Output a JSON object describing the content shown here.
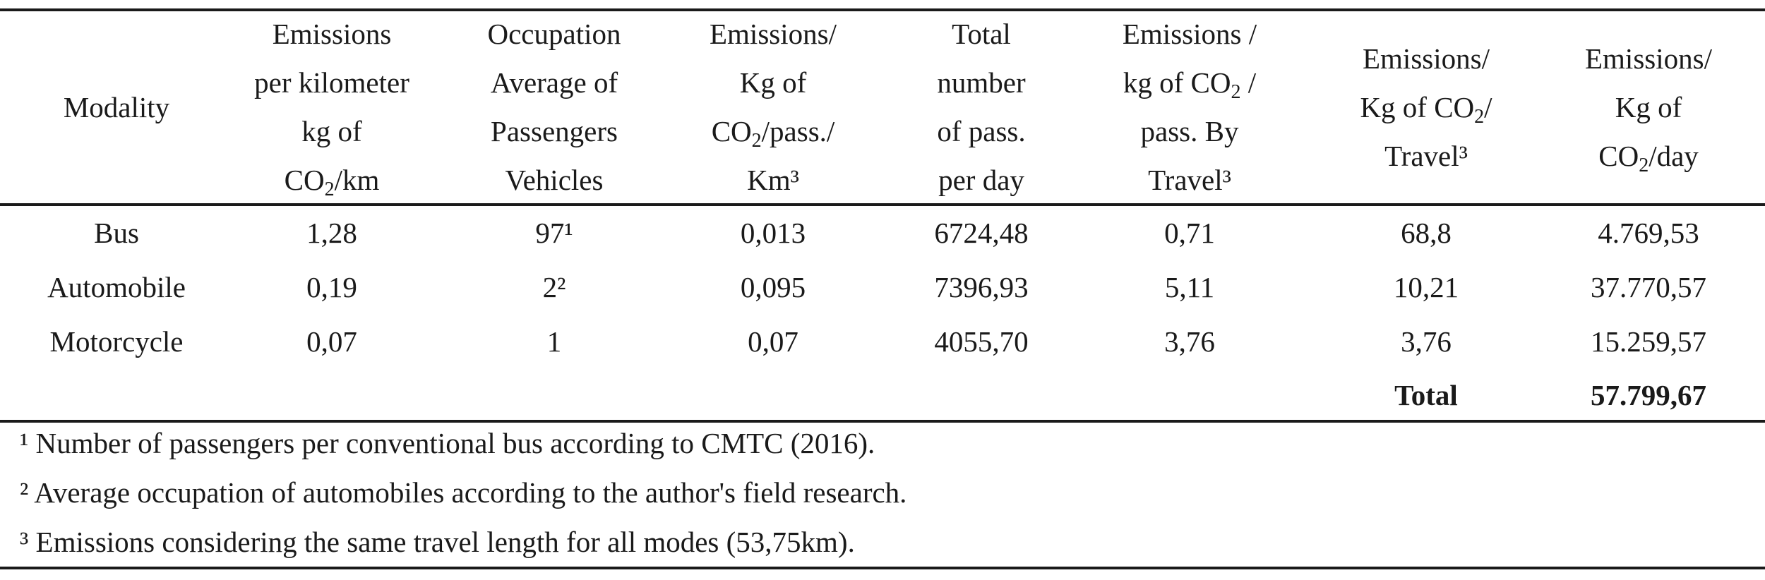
{
  "table": {
    "headers": [
      {
        "lines": [
          "Modality"
        ]
      },
      {
        "lines": [
          "Emissions",
          "per kilometer",
          "kg of",
          "CO{2}/km"
        ]
      },
      {
        "lines": [
          "Occupation",
          "Average of",
          "Passengers",
          "Vehicles"
        ]
      },
      {
        "lines": [
          "Emissions/",
          "Kg of",
          "CO{2}/pass./",
          "Km³"
        ]
      },
      {
        "lines": [
          "Total",
          "number",
          "of pass.",
          "per day"
        ]
      },
      {
        "lines": [
          "Emissions /",
          "kg of CO{2} /",
          "pass. By",
          "Travel³"
        ]
      },
      {
        "lines": [
          "Emissions/",
          "Kg of CO{2}/",
          "Travel³"
        ]
      },
      {
        "lines": [
          "Emissions/",
          "Kg of",
          "CO{2}/day"
        ]
      }
    ],
    "rows": [
      [
        "Bus",
        "1,28",
        "97¹",
        "0,013",
        "6724,48",
        "0,71",
        "68,8",
        "4.769,53"
      ],
      [
        "Automobile",
        "0,19",
        "2²",
        "0,095",
        "7396,93",
        "5,11",
        "10,21",
        "37.770,57"
      ],
      [
        "Motorcycle",
        "0,07",
        "1",
        "0,07",
        "4055,70",
        "3,76",
        "3,76",
        "15.259,57"
      ]
    ],
    "total": {
      "label": "Total",
      "value": "57.799,67"
    }
  },
  "footnotes": [
    "¹ Number of passengers per conventional bus according to CMTC (2016).",
    "² Average occupation of automobiles according to the author's field research.",
    "³ Emissions considering the same travel length for all modes (53,75km)."
  ]
}
